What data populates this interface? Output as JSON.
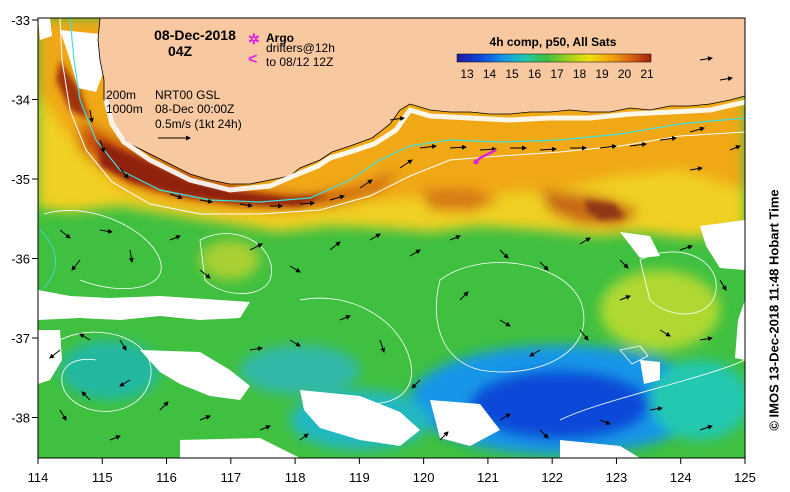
{
  "map": {
    "date": "08-Dec-2018",
    "time": "04Z",
    "legend_argo_label": "Argo",
    "legend_drifters_line1": "drifters@12h",
    "legend_drifters_line2": "to 08/12 12Z",
    "contour_labels": [
      "200m",
      "1000m"
    ],
    "product_line1": "NRT00 GSL",
    "product_line2": "08-Dec 00:00Z",
    "scale_label": "0.5m/s (1kt 24h)",
    "colorbar": {
      "title": "4h comp, p50, All Sats",
      "ticks": [
        "13",
        "14",
        "15",
        "16",
        "17",
        "18",
        "19",
        "20",
        "21"
      ],
      "colors": [
        "#1a1aa0",
        "#1048d8",
        "#1696e8",
        "#20c8b0",
        "#3cc040",
        "#9cd020",
        "#f0e010",
        "#f0a010",
        "#d86010",
        "#a02010"
      ]
    },
    "credit": "© IMOS 13-Dec-2018 11:48 Hobart Time",
    "x_ticks": [
      "114",
      "115",
      "116",
      "117",
      "118",
      "119",
      "120",
      "121",
      "122",
      "123",
      "124",
      "125"
    ],
    "y_ticks": [
      "-33",
      "-34",
      "-35",
      "-36",
      "-37",
      "-38"
    ],
    "colors": {
      "land": "#f8c8a0",
      "no_data": "#ffffff",
      "contour_200m": "#40e0e0",
      "contour_1000m": "#ffffff",
      "argo": "#e020e0",
      "drifter": "#e020e0"
    }
  }
}
